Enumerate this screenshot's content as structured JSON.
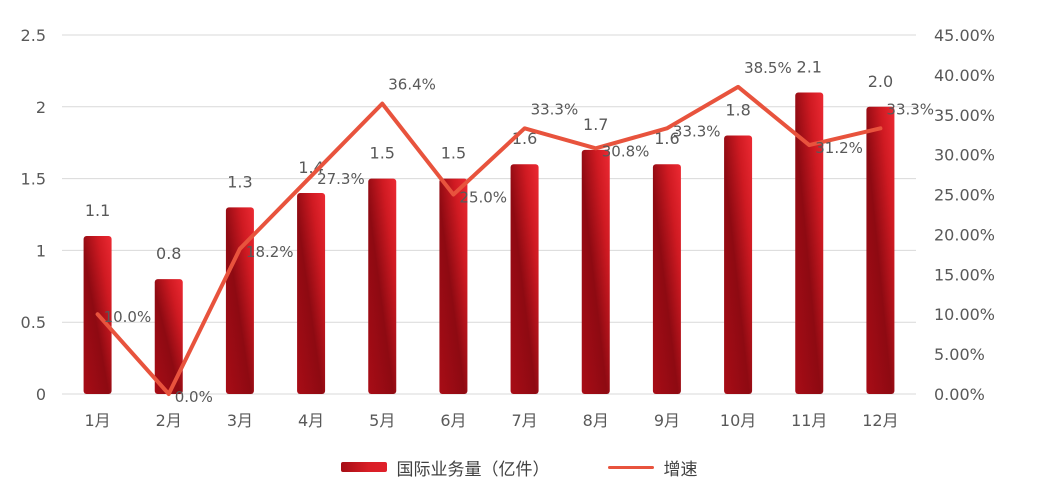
{
  "chart_data": {
    "type": "bar",
    "categories": [
      "1月",
      "2月",
      "3月",
      "4月",
      "5月",
      "6月",
      "7月",
      "8月",
      "9月",
      "10月",
      "11月",
      "12月"
    ],
    "series": [
      {
        "name": "国际业务量（亿件）",
        "type": "bar",
        "axis": "left",
        "values": [
          1.1,
          0.8,
          1.3,
          1.4,
          1.5,
          1.5,
          1.6,
          1.7,
          1.6,
          1.8,
          2.1,
          2.0
        ],
        "labels": [
          "1.1",
          "0.8",
          "1.3",
          "1.4",
          "1.5",
          "1.5",
          "1.6",
          "1.7",
          "1.6",
          "1.8",
          "2.1",
          "2.0"
        ],
        "color": "#d81e26"
      },
      {
        "name": "增速",
        "type": "line",
        "axis": "right",
        "values": [
          10.0,
          0.0,
          18.2,
          27.3,
          36.4,
          25.0,
          33.3,
          30.8,
          33.3,
          38.5,
          31.2,
          33.3
        ],
        "labels": [
          "10.0%",
          "0.0%",
          "18.2%",
          "27.3%",
          "36.4%",
          "25.0%",
          "33.3%",
          "30.8%",
          "33.3%",
          "38.5%",
          "31.2%",
          "33.3%"
        ],
        "color": "#e8533d"
      }
    ],
    "y_left": {
      "ylim": [
        0,
        2.5
      ],
      "ticks": [
        "0",
        "0.5",
        "1",
        "1.5",
        "2",
        "2.5"
      ]
    },
    "y_right": {
      "ylim": [
        0,
        45
      ],
      "ticks": [
        "0.00%",
        "5.00%",
        "10.00%",
        "15.00%",
        "20.00%",
        "25.00%",
        "30.00%",
        "35.00%",
        "40.00%",
        "45.00%"
      ]
    },
    "grid": true,
    "legend_position": "bottom-center"
  },
  "legend": {
    "bar_label": "国际业务量（亿件）",
    "line_label": "增速"
  }
}
